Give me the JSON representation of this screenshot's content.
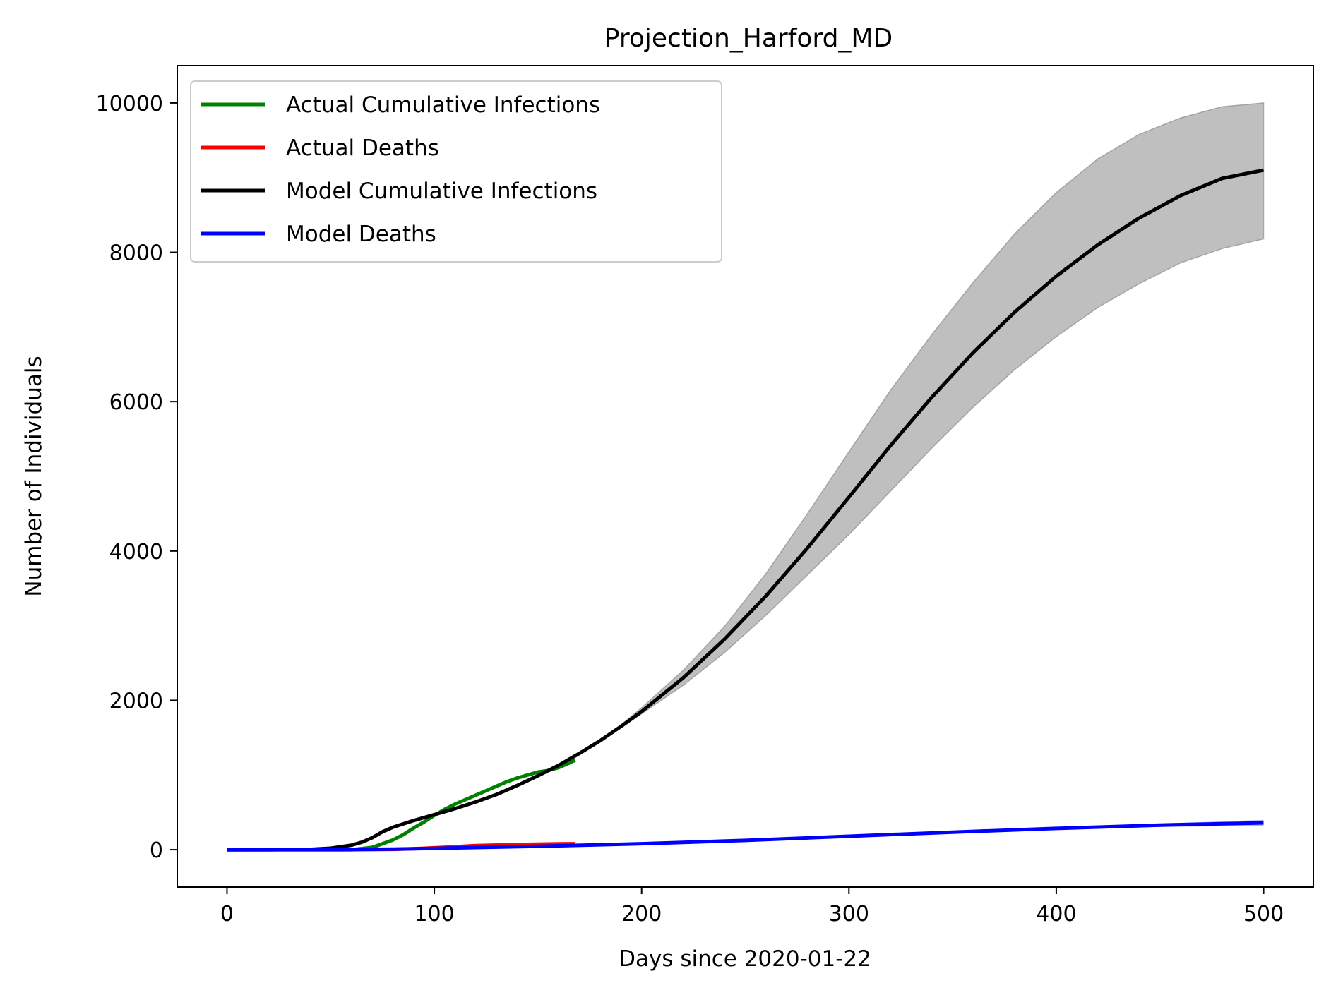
{
  "chart_data": {
    "type": "line",
    "title": "Projection_Harford_MD",
    "xlabel": "Days since 2020-01-22",
    "ylabel": "Number of Individuals",
    "xlim": [
      -24,
      524
    ],
    "ylim": [
      -500,
      10500
    ],
    "x_ticks": [
      0,
      100,
      200,
      300,
      400,
      500
    ],
    "y_ticks": [
      0,
      2000,
      4000,
      6000,
      8000,
      10000
    ],
    "legend_position": "top-left",
    "grid": false,
    "series": [
      {
        "name": "Actual Cumulative Infections",
        "color": "#008000",
        "x": [
          0,
          40,
          60,
          70,
          75,
          80,
          85,
          90,
          95,
          100,
          105,
          110,
          115,
          120,
          125,
          130,
          135,
          140,
          145,
          150,
          155,
          160,
          165,
          168
        ],
        "y": [
          0,
          0,
          0,
          30,
          80,
          130,
          200,
          290,
          370,
          460,
          540,
          610,
          670,
          730,
          790,
          850,
          910,
          960,
          1000,
          1040,
          1060,
          1100,
          1160,
          1200
        ]
      },
      {
        "name": "Actual Deaths",
        "color": "#ff0000",
        "x": [
          0,
          60,
          80,
          90,
          100,
          110,
          120,
          130,
          140,
          150,
          160,
          168
        ],
        "y": [
          0,
          0,
          5,
          12,
          25,
          40,
          55,
          62,
          70,
          75,
          78,
          80
        ]
      },
      {
        "name": "Model Cumulative Infections",
        "color": "#000000",
        "x": [
          0,
          20,
          40,
          50,
          60,
          65,
          70,
          75,
          80,
          90,
          100,
          110,
          120,
          130,
          140,
          150,
          160,
          170,
          180,
          190,
          200,
          220,
          240,
          260,
          280,
          300,
          320,
          340,
          360,
          380,
          400,
          420,
          440,
          460,
          480,
          500
        ],
        "y": [
          0,
          0,
          5,
          20,
          60,
          100,
          160,
          240,
          300,
          390,
          470,
          550,
          640,
          740,
          860,
          990,
          1130,
          1290,
          1460,
          1650,
          1850,
          2300,
          2820,
          3400,
          4040,
          4720,
          5410,
          6060,
          6660,
          7200,
          7680,
          8100,
          8460,
          8760,
          8990,
          9100
        ],
        "band_upper": [
          0,
          0,
          5,
          20,
          60,
          100,
          160,
          240,
          300,
          390,
          470,
          550,
          640,
          740,
          860,
          990,
          1130,
          1290,
          1470,
          1670,
          1900,
          2400,
          2990,
          3700,
          4500,
          5330,
          6150,
          6900,
          7600,
          8250,
          8800,
          9250,
          9580,
          9800,
          9950,
          10000
        ],
        "band_lower": [
          0,
          0,
          5,
          20,
          60,
          100,
          160,
          240,
          300,
          390,
          470,
          550,
          640,
          740,
          860,
          990,
          1130,
          1290,
          1450,
          1630,
          1820,
          2200,
          2640,
          3140,
          3680,
          4220,
          4800,
          5380,
          5930,
          6430,
          6870,
          7260,
          7580,
          7860,
          8050,
          8180
        ]
      },
      {
        "name": "Model Deaths",
        "color": "#0000ff",
        "x": [
          0,
          50,
          80,
          100,
          150,
          200,
          250,
          300,
          350,
          400,
          450,
          500
        ],
        "y": [
          0,
          1,
          8,
          18,
          45,
          80,
          125,
          180,
          235,
          285,
          330,
          360
        ],
        "band_upper": [
          0,
          1,
          8,
          18,
          45,
          80,
          125,
          185,
          245,
          300,
          350,
          400
        ],
        "band_lower": [
          0,
          1,
          8,
          18,
          45,
          80,
          125,
          175,
          225,
          270,
          305,
          320
        ]
      }
    ]
  }
}
